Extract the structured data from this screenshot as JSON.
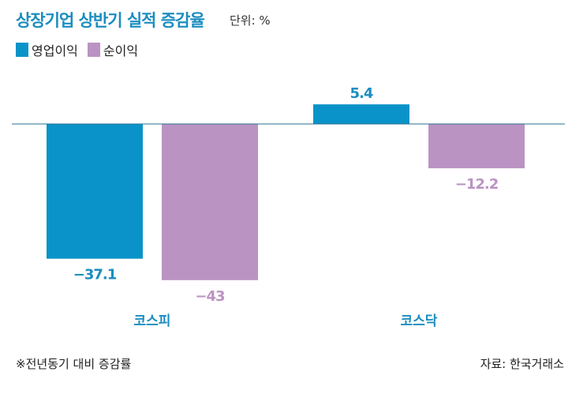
{
  "title": "상장기업 상반기 실적 증감율",
  "unit": "단위: %",
  "footnote": "※전년동기 대비 증감률",
  "source": "자료: 한국거래소",
  "colors": {
    "operating": "#0a93c9",
    "net": "#bb93c3",
    "category": "#1b8dc0"
  },
  "chart_data": {
    "type": "bar",
    "title": "상장기업 상반기 실적 증감율",
    "categories": [
      "코스피",
      "코스닥"
    ],
    "series": [
      {
        "name": "영업이익",
        "values": [
          -37.1,
          5.4
        ],
        "labels": [
          "-37.1",
          "5.4"
        ]
      },
      {
        "name": "순이익",
        "values": [
          -43,
          -12.2
        ],
        "labels": [
          "-43",
          "-12.2"
        ]
      }
    ],
    "ylabel": "%",
    "ylim": [
      -45,
      8
    ],
    "grid": false,
    "legend": "top-left"
  }
}
